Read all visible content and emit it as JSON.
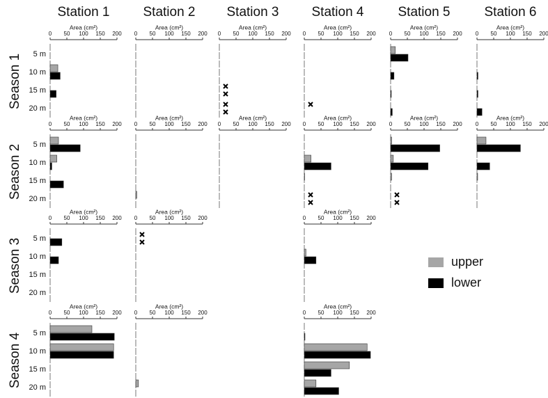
{
  "chart_data": {
    "type": "bar-grid",
    "columns": [
      "Station 1",
      "Station 2",
      "Station 3",
      "Station 4",
      "Station 5",
      "Station 6"
    ],
    "xlabel": "Area (cm²)",
    "xlim": [
      0,
      200
    ],
    "xticks": [
      0,
      50,
      100,
      150,
      200
    ],
    "categories": [
      "5 m",
      "10 m",
      "15 m",
      "20 m"
    ],
    "series": [
      {
        "name": "upper",
        "color": "#a6a6a6"
      },
      {
        "name": "lower",
        "color": "#000000"
      }
    ],
    "rows": [
      {
        "title": "Season 1",
        "panels": [
          {
            "series": [
              {
                "values": [
                  0,
                  23,
                  0,
                  0
                ]
              },
              {
                "values": [
                  0,
                  30,
                  18,
                  0
                ]
              }
            ]
          },
          {
            "series": [
              {
                "values": [
                  0,
                  0,
                  0,
                  0
                ]
              },
              {
                "values": [
                  0,
                  0,
                  0,
                  0
                ]
              }
            ]
          },
          {
            "series": [
              {
                "values": [
                  0,
                  0,
                  null,
                  null
                ]
              },
              {
                "values": [
                  0,
                  0,
                  null,
                  null
                ]
              }
            ]
          },
          {
            "series": [
              {
                "values": [
                  0,
                  0,
                  0,
                  null
                ]
              },
              {
                "values": [
                  0,
                  0,
                  0,
                  0
                ]
              }
            ]
          },
          {
            "series": [
              {
                "values": [
                  14,
                  0,
                  0,
                  0
                ]
              },
              {
                "values": [
                  52,
                  10,
                  2,
                  5
                ]
              }
            ]
          },
          {
            "series": [
              {
                "values": [
                  0,
                  0,
                  0,
                  0
                ]
              },
              {
                "values": [
                  0,
                  3,
                  3,
                  15
                ]
              }
            ]
          }
        ]
      },
      {
        "title": "Season 2",
        "panels": [
          {
            "series": [
              {
                "values": [
                  25,
                  20,
                  0,
                  0
                ]
              },
              {
                "values": [
                  90,
                  5,
                  40,
                  0
                ]
              }
            ]
          },
          {
            "series": [
              {
                "values": [
                  0,
                  0,
                  0,
                  3
                ]
              },
              {
                "values": [
                  0,
                  0,
                  0,
                  0
                ]
              }
            ]
          },
          {
            "series": [
              {
                "values": [
                  0,
                  0,
                  0,
                  0
                ]
              },
              {
                "values": [
                  0,
                  0,
                  0,
                  0
                ]
              }
            ]
          },
          {
            "series": [
              {
                "values": [
                  0,
                  20,
                  1,
                  null
                ]
              },
              {
                "values": [
                  0,
                  80,
                  0,
                  null
                ]
              }
            ]
          },
          {
            "series": [
              {
                "values": [
                  3,
                  8,
                  3,
                  null
                ]
              },
              {
                "values": [
                  147,
                  112,
                  0,
                  null
                ]
              }
            ]
          },
          {
            "series": [
              {
                "values": [
                  27,
                  0,
                  2,
                  0
                ]
              },
              {
                "values": [
                  130,
                  38,
                  0,
                  0
                ]
              }
            ]
          }
        ]
      },
      {
        "title": "Season 3",
        "panels": [
          {
            "series": [
              {
                "values": [
                  0,
                  0,
                  0,
                  0
                ]
              },
              {
                "values": [
                  35,
                  25,
                  0,
                  0
                ]
              }
            ]
          },
          {
            "series": [
              {
                "values": [
                  null,
                  0,
                  0,
                  0
                ]
              },
              {
                "values": [
                  null,
                  0,
                  0,
                  0
                ]
              }
            ]
          },
          null,
          {
            "series": [
              {
                "values": [
                  0,
                  5,
                  0,
                  0
                ]
              },
              {
                "values": [
                  0,
                  35,
                  0,
                  0
                ]
              }
            ]
          },
          null,
          null
        ]
      },
      {
        "title": "Season 4",
        "panels": [
          {
            "series": [
              {
                "values": [
                  125,
                  190,
                  0,
                  0
                ]
              },
              {
                "values": [
                  192,
                  190,
                  0,
                  0
                ]
              }
            ]
          },
          {
            "series": [
              {
                "values": [
                  0,
                  0,
                  0,
                  8
                ]
              },
              {
                "values": [
                  0,
                  0,
                  0,
                  0
                ]
              }
            ]
          },
          null,
          {
            "series": [
              {
                "values": [
                  0,
                  188,
                  135,
                  35
                ]
              },
              {
                "values": [
                  2,
                  198,
                  80,
                  103
                ]
              }
            ]
          },
          null,
          null
        ]
      }
    ]
  }
}
